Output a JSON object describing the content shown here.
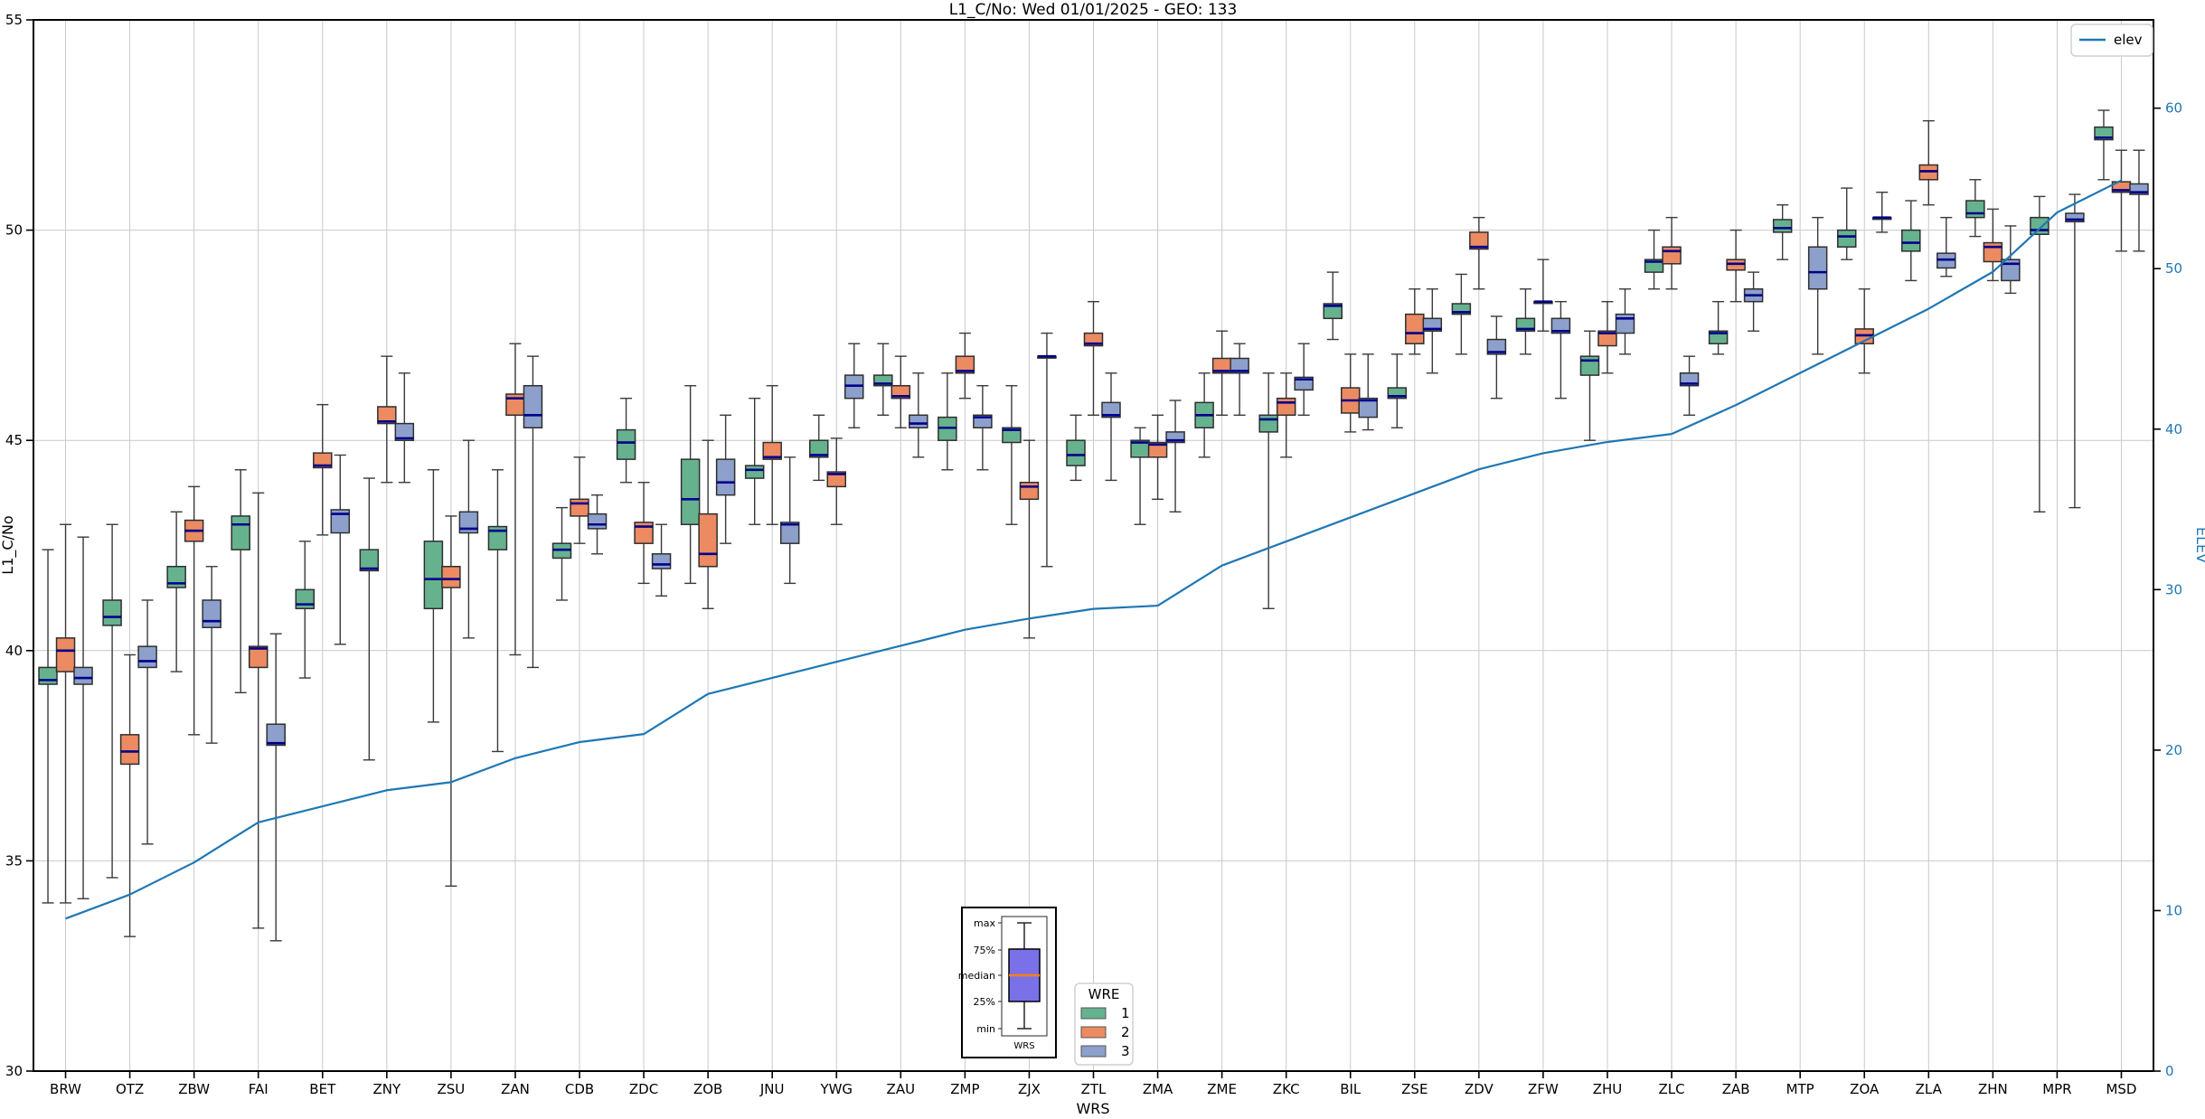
{
  "title": "L1_C/No: Wed 01/01/2025 - GEO: 133",
  "chart_data": {
    "type": "boxplot+line",
    "title": "L1_C/No: Wed 01/01/2025 - GEO: 133",
    "xlabel": "WRS",
    "ylabel_left": "L1_C/No",
    "ylabel_right": "ELEV",
    "ylim_left": [
      30,
      55
    ],
    "yticks_left": [
      30,
      35,
      40,
      45,
      50,
      55
    ],
    "ylim_right": [
      0,
      65.5
    ],
    "yticks_right": [
      0,
      10,
      20,
      30,
      40,
      50,
      60
    ],
    "grid": true,
    "line_legend_label": "elev",
    "legend": {
      "title": "WRE",
      "entries": [
        {
          "label": "1",
          "color": "#66b28f"
        },
        {
          "label": "2",
          "color": "#ec8a62"
        },
        {
          "label": "3",
          "color": "#8da0cb"
        }
      ]
    },
    "anatomy": {
      "labels": [
        "max",
        "75%",
        "median",
        "25%",
        "min"
      ],
      "xlabel": "WRS",
      "box_color": "#7a70e8",
      "median_color": "#ff7f0e"
    },
    "colors": {
      "elev_line": "#1f77b4",
      "median_line": "#00008b",
      "grid": "#c9c9c9",
      "box_edge": "#2f2f2f",
      "spine": "#000000"
    },
    "categories": [
      "BRW",
      "OTZ",
      "ZBW",
      "FAI",
      "BET",
      "ZNY",
      "ZSU",
      "ZAN",
      "CDB",
      "ZDC",
      "ZOB",
      "JNU",
      "YWG",
      "ZAU",
      "ZMP",
      "ZJX",
      "ZTL",
      "ZMA",
      "ZME",
      "ZKC",
      "BIL",
      "ZSE",
      "ZDV",
      "ZFW",
      "ZHU",
      "ZLC",
      "ZAB",
      "MTP",
      "ZOA",
      "ZLA",
      "ZHN",
      "MPR",
      "MSD"
    ],
    "elev": [
      9.5,
      11,
      13,
      15.5,
      16.5,
      17.5,
      18,
      19.5,
      20.5,
      21,
      23.5,
      24.5,
      25.5,
      26.5,
      27.5,
      28.2,
      28.8,
      29,
      31.5,
      33,
      34.5,
      36,
      37.5,
      38.5,
      39.2,
      39.7,
      41.5,
      43.5,
      45.5,
      47.5,
      49.8,
      53.5,
      55.5
    ],
    "series": [
      {
        "name": "1",
        "color": "#66b28f",
        "boxes": [
          [
            34.0,
            39.2,
            39.3,
            39.6,
            42.4
          ],
          [
            34.6,
            40.6,
            40.8,
            41.2,
            43.0
          ],
          [
            39.5,
            41.5,
            41.6,
            42.0,
            43.3
          ],
          [
            39.0,
            42.4,
            43.0,
            43.2,
            44.3
          ],
          [
            39.35,
            41.0,
            41.1,
            41.45,
            42.6
          ],
          [
            37.4,
            41.9,
            41.95,
            42.4,
            44.1
          ],
          [
            38.3,
            41.0,
            41.7,
            42.6,
            44.3
          ],
          [
            37.6,
            42.4,
            42.85,
            42.95,
            44.3
          ],
          [
            41.2,
            42.2,
            42.4,
            42.55,
            43.4
          ],
          [
            44.0,
            44.55,
            44.95,
            45.25,
            46.0
          ],
          [
            41.6,
            43.0,
            43.6,
            44.55,
            46.3
          ],
          [
            43.0,
            44.1,
            44.3,
            44.4,
            46.0
          ],
          [
            44.05,
            44.6,
            44.65,
            45.0,
            45.6
          ],
          [
            45.6,
            46.3,
            46.35,
            46.55,
            47.3
          ],
          [
            44.3,
            45.0,
            45.3,
            45.55,
            46.6
          ],
          [
            43.0,
            44.95,
            45.25,
            45.3,
            46.3
          ],
          [
            44.05,
            44.4,
            44.65,
            45.0,
            45.6
          ],
          [
            43.0,
            44.6,
            44.95,
            45.0,
            45.3
          ],
          [
            44.6,
            45.3,
            45.6,
            45.9,
            46.6
          ],
          [
            41.0,
            45.2,
            45.5,
            45.6,
            46.6
          ],
          [
            47.4,
            47.9,
            48.2,
            48.25,
            49.0
          ],
          [
            45.3,
            46.0,
            46.05,
            46.25,
            47.05
          ],
          [
            47.05,
            48.0,
            48.05,
            48.25,
            48.95
          ],
          [
            47.05,
            47.6,
            47.65,
            47.9,
            48.6
          ],
          [
            45.0,
            46.55,
            46.9,
            47.0,
            47.6
          ],
          [
            48.6,
            49.0,
            49.25,
            49.3,
            50.0
          ],
          [
            47.05,
            47.3,
            47.55,
            47.6,
            48.3
          ],
          [
            49.3,
            49.95,
            50.05,
            50.25,
            50.6
          ],
          [
            49.3,
            49.6,
            49.85,
            50.0,
            51.0
          ],
          [
            48.8,
            49.5,
            49.7,
            50.0,
            50.7
          ],
          [
            49.85,
            50.3,
            50.4,
            50.7,
            51.2
          ],
          [
            43.3,
            49.9,
            50.0,
            50.3,
            50.8
          ],
          [
            51.2,
            52.15,
            52.2,
            52.45,
            52.85
          ]
        ]
      },
      {
        "name": "2",
        "color": "#ec8a62",
        "boxes": [
          [
            34.0,
            39.5,
            40.0,
            40.3,
            43.0
          ],
          [
            33.2,
            37.3,
            37.6,
            38.0,
            39.9
          ],
          [
            38.0,
            42.6,
            42.85,
            43.1,
            43.9
          ],
          [
            33.4,
            39.6,
            40.05,
            40.1,
            43.75
          ],
          [
            42.75,
            44.35,
            44.4,
            44.7,
            45.85
          ],
          [
            44.0,
            45.4,
            45.45,
            45.8,
            47.0
          ],
          [
            34.4,
            41.5,
            41.7,
            42.0,
            43.2
          ],
          [
            39.9,
            45.6,
            46.0,
            46.1,
            47.3
          ],
          [
            42.55,
            43.2,
            43.5,
            43.6,
            44.6
          ],
          [
            41.6,
            42.55,
            42.95,
            43.05,
            44.0
          ],
          [
            41.0,
            42.0,
            42.3,
            43.25,
            45.0
          ],
          [
            43.0,
            44.55,
            44.6,
            44.95,
            46.3
          ],
          [
            43.0,
            43.9,
            44.2,
            44.25,
            45.05
          ],
          [
            45.3,
            46.0,
            46.05,
            46.3,
            47.0
          ],
          [
            46.0,
            46.6,
            46.65,
            47.0,
            47.55
          ],
          [
            40.3,
            43.6,
            43.9,
            44.0,
            45.0
          ],
          [
            45.6,
            47.25,
            47.3,
            47.55,
            48.3
          ],
          [
            43.6,
            44.6,
            44.9,
            44.95,
            45.6
          ],
          [
            45.6,
            46.6,
            46.65,
            46.95,
            47.6
          ],
          [
            44.6,
            45.6,
            45.9,
            46.0,
            46.6
          ],
          [
            45.2,
            45.65,
            45.95,
            46.25,
            47.05
          ],
          [
            47.05,
            47.3,
            47.55,
            48.0,
            48.6
          ],
          [
            48.6,
            49.55,
            49.6,
            49.95,
            50.3
          ],
          [
            47.6,
            48.3,
            48.3,
            48.3,
            49.3
          ],
          [
            46.6,
            47.25,
            47.55,
            47.6,
            48.3
          ],
          [
            48.6,
            49.2,
            49.5,
            49.6,
            50.3
          ],
          [
            48.3,
            49.05,
            49.2,
            49.3,
            50.0
          ],
          null,
          [
            46.6,
            47.3,
            47.5,
            47.65,
            48.6
          ],
          [
            50.6,
            51.2,
            51.4,
            51.55,
            52.6
          ],
          [
            48.8,
            49.25,
            49.6,
            49.7,
            50.5
          ],
          null,
          [
            49.5,
            50.9,
            50.95,
            51.15,
            51.9
          ]
        ]
      },
      {
        "name": "3",
        "color": "#8da0cb",
        "boxes": [
          [
            34.1,
            39.2,
            39.35,
            39.6,
            42.7
          ],
          [
            35.4,
            39.6,
            39.75,
            40.1,
            41.2
          ],
          [
            37.8,
            40.55,
            40.7,
            41.2,
            42.0
          ],
          [
            33.1,
            37.75,
            37.8,
            38.25,
            40.4
          ],
          [
            40.15,
            42.8,
            43.25,
            43.35,
            44.65
          ],
          [
            44.0,
            45.0,
            45.05,
            45.4,
            46.6
          ],
          [
            40.3,
            42.8,
            42.9,
            43.3,
            45.0
          ],
          [
            39.6,
            45.3,
            45.6,
            46.3,
            47.0
          ],
          [
            42.3,
            42.9,
            43.0,
            43.25,
            43.7
          ],
          [
            41.3,
            41.95,
            42.05,
            42.3,
            43.0
          ],
          [
            42.55,
            43.7,
            44.0,
            44.55,
            45.6
          ],
          [
            41.6,
            42.55,
            43.0,
            43.05,
            44.6
          ],
          [
            45.3,
            46.0,
            46.3,
            46.55,
            47.3
          ],
          [
            44.6,
            45.3,
            45.4,
            45.6,
            46.6
          ],
          [
            44.3,
            45.3,
            45.55,
            45.6,
            46.3
          ],
          [
            42.0,
            47.0,
            47.0,
            47.0,
            47.55
          ],
          [
            44.05,
            45.55,
            45.6,
            45.9,
            46.6
          ],
          [
            43.3,
            44.95,
            45.0,
            45.2,
            45.95
          ],
          [
            45.6,
            46.6,
            46.65,
            46.95,
            47.3
          ],
          [
            45.6,
            46.2,
            46.45,
            46.5,
            47.3
          ],
          [
            45.25,
            45.55,
            45.95,
            46.0,
            47.05
          ],
          [
            46.6,
            47.6,
            47.65,
            47.9,
            48.6
          ],
          [
            46.0,
            47.05,
            47.1,
            47.4,
            47.95
          ],
          [
            46.0,
            47.55,
            47.6,
            47.9,
            48.3
          ],
          [
            47.05,
            47.55,
            47.9,
            48.0,
            48.6
          ],
          [
            45.6,
            46.3,
            46.35,
            46.6,
            47.0
          ],
          [
            47.6,
            48.3,
            48.45,
            48.6,
            49.0
          ],
          [
            47.05,
            48.6,
            49.0,
            49.6,
            50.3
          ],
          [
            49.95,
            50.3,
            50.3,
            50.3,
            50.9
          ],
          [
            48.9,
            49.1,
            49.3,
            49.45,
            50.3
          ],
          [
            48.5,
            48.8,
            49.2,
            49.3,
            50.1
          ],
          [
            43.4,
            50.2,
            50.25,
            50.4,
            50.85
          ],
          [
            49.5,
            50.85,
            50.9,
            51.1,
            51.9
          ]
        ]
      }
    ]
  }
}
